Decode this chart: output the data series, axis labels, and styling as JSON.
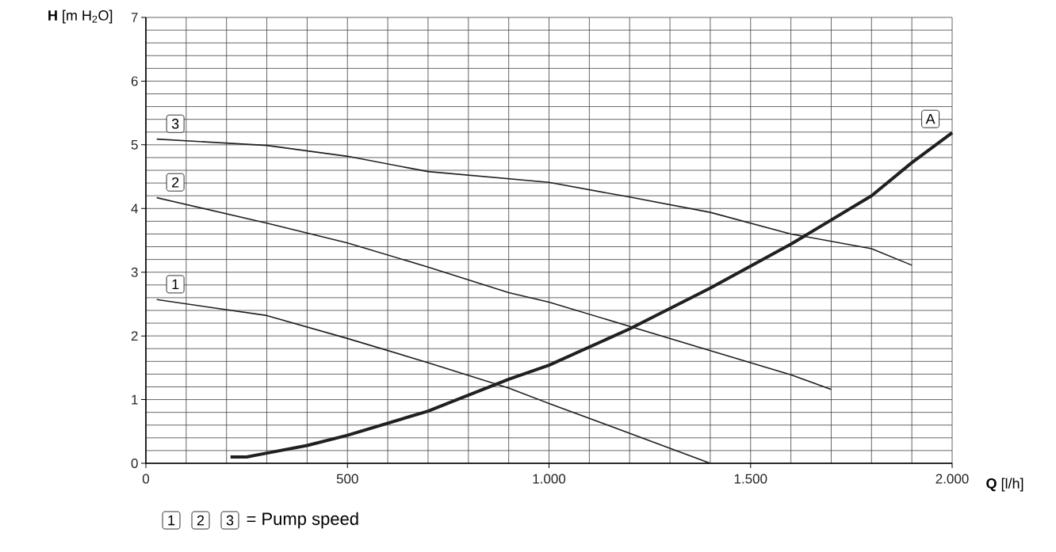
{
  "chart_data": {
    "type": "line",
    "xlabel": "**Q** [l/h]",
    "ylabel": "**H** [m H$_{2}$O]",
    "xlim": [
      0,
      2000
    ],
    "ylim": [
      0,
      7
    ],
    "xticks": [
      0,
      500,
      {
        "value": 1000,
        "label": "1.000"
      },
      {
        "value": 1500,
        "label": "1.500"
      },
      {
        "value": 2000,
        "label": "2.000"
      }
    ],
    "yticks": [
      0,
      1,
      2,
      3,
      4,
      5,
      6,
      7
    ],
    "grid": true,
    "legend": false,
    "marker": "none",
    "line_style": "solid",
    "annotations": [
      "= Pump speed"
    ],
    "series": [
      {
        "name": "1",
        "color": "#231f20",
        "x": [
          27,
          300,
          500,
          700,
          900,
          1000,
          1200,
          1400
        ],
        "values": [
          2.57,
          2.32,
          1.96,
          1.58,
          1.18,
          0.94,
          0.47,
          0
        ]
      },
      {
        "name": "2",
        "color": "#231f20",
        "x": [
          27,
          300,
          500,
          700,
          900,
          1000,
          1200,
          1400,
          1600,
          1700
        ],
        "values": [
          4.17,
          3.77,
          3.46,
          3.08,
          2.68,
          2.53,
          2.15,
          1.77,
          1.39,
          1.16
        ]
      },
      {
        "name": "3",
        "color": "#231f20",
        "x": [
          27,
          300,
          500,
          700,
          1000,
          1200,
          1400,
          1600,
          1800,
          1900
        ],
        "values": [
          5.09,
          4.99,
          4.82,
          4.58,
          4.41,
          4.18,
          3.94,
          3.6,
          3.37,
          3.11
        ]
      },
      {
        "name": "A",
        "color": "#231f20",
        "x": [
          210,
          250,
          300,
          400,
          500,
          700,
          900,
          1000,
          1200,
          1400,
          1600,
          1800,
          1900,
          2000
        ],
        "values": [
          0.1,
          0.1,
          0.16,
          0.28,
          0.44,
          0.82,
          1.32,
          1.54,
          2.11,
          2.75,
          3.44,
          4.2,
          4.72,
          5.19
        ]
      }
    ]
  }
}
